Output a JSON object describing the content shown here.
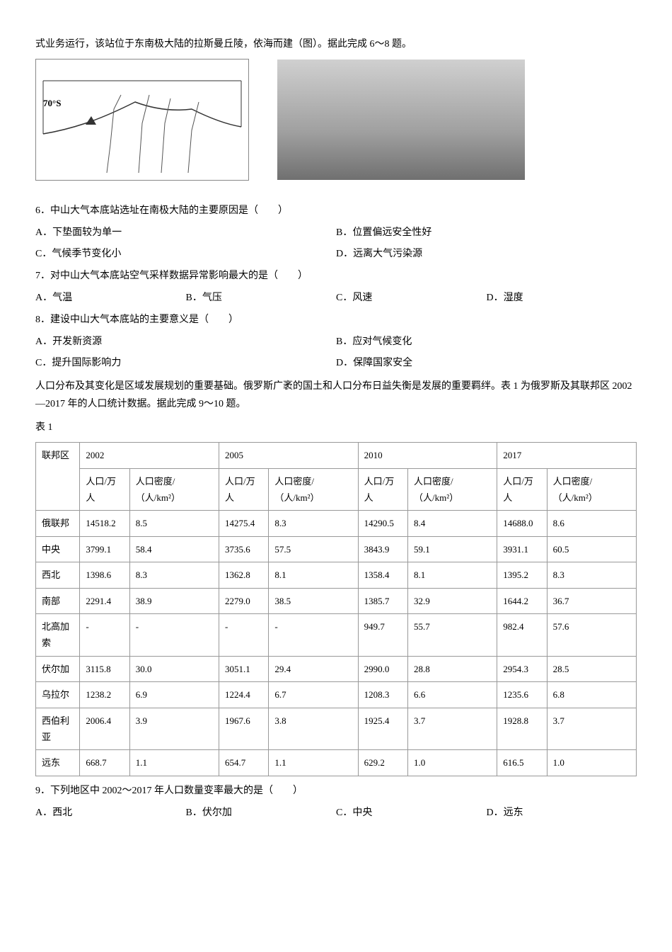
{
  "intro": "式业务运行，该站位于东南极大陆的拉斯曼丘陵，依海而建（图）。据此完成 6～8 题。",
  "map_label": "70°S",
  "q6": {
    "stem": "6．中山大气本底站选址在南极大陆的主要原因是（　　）",
    "opts": [
      "A．下垫面较为单一",
      "B．位置偏远安全性好",
      "C．气候季节变化小",
      "D．远离大气污染源"
    ]
  },
  "q7": {
    "stem": "7．对中山大气本底站空气采样数据异常影响最大的是（　　）",
    "opts": [
      "A．气温",
      "B．气压",
      "C．风速",
      "D．湿度"
    ]
  },
  "q8": {
    "stem": "8．建设中山大气本底站的主要意义是（　　）",
    "opts": [
      "A．开发新资源",
      "B．应对气候变化",
      "C．提升国际影响力",
      "D．保障国家安全"
    ]
  },
  "passage2": "人口分布及其变化是区域发展规划的重要基础。俄罗斯广袤的国土和人口分布日益失衡是发展的重要羁绊。表 1 为俄罗斯及其联邦区 2002—2017 年的人口统计数据。据此完成 9～10 题。",
  "table_caption": "表 1",
  "table": {
    "header_col1": "联邦区",
    "years": [
      "2002",
      "2005",
      "2010",
      "2017"
    ],
    "sub_headers": [
      "人口/万人",
      "人口密度/（人/km²）"
    ],
    "rows": [
      {
        "name": "俄联邦",
        "cells": [
          "14518.2",
          "8.5",
          "14275.4",
          "8.3",
          "14290.5",
          "8.4",
          "14688.0",
          "8.6"
        ]
      },
      {
        "name": "中央",
        "cells": [
          "3799.1",
          "58.4",
          "3735.6",
          "57.5",
          "3843.9",
          "59.1",
          "3931.1",
          "60.5"
        ]
      },
      {
        "name": "西北",
        "cells": [
          "1398.6",
          "8.3",
          "1362.8",
          "8.1",
          "1358.4",
          "8.1",
          "1395.2",
          "8.3"
        ]
      },
      {
        "name": "南部",
        "cells": [
          "2291.4",
          "38.9",
          "2279.0",
          "38.5",
          "1385.7",
          "32.9",
          "1644.2",
          "36.7"
        ]
      },
      {
        "name": "北高加索",
        "cells": [
          "-",
          "-",
          "-",
          "-",
          "949.7",
          "55.7",
          "982.4",
          "57.6"
        ]
      },
      {
        "name": "伏尔加",
        "cells": [
          "3115.8",
          "30.0",
          "3051.1",
          "29.4",
          "2990.0",
          "28.8",
          "2954.3",
          "28.5"
        ]
      },
      {
        "name": "乌拉尔",
        "cells": [
          "1238.2",
          "6.9",
          "1224.4",
          "6.7",
          "1208.3",
          "6.6",
          "1235.6",
          "6.8"
        ]
      },
      {
        "name": "西伯利亚",
        "cells": [
          "2006.4",
          "3.9",
          "1967.6",
          "3.8",
          "1925.4",
          "3.7",
          "1928.8",
          "3.7"
        ]
      },
      {
        "name": "远东",
        "cells": [
          "668.7",
          "1.1",
          "654.7",
          "1.1",
          "629.2",
          "1.0",
          "616.5",
          "1.0"
        ]
      }
    ]
  },
  "q9": {
    "stem": "9．下列地区中 2002～2017 年人口数量变率最大的是（　　）",
    "opts": [
      "A．西北",
      "B．伏尔加",
      "C．中央",
      "D．远东"
    ]
  }
}
